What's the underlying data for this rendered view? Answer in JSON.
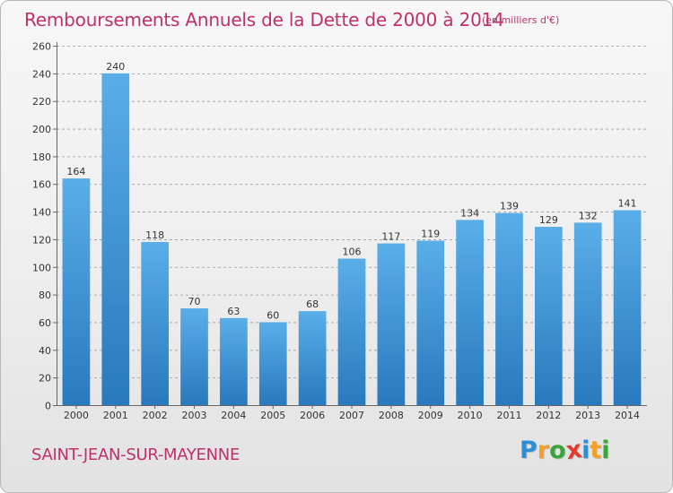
{
  "header": {
    "title": "Remboursements Annuels de la Dette de 2000 à 2014",
    "subtitle": "(en milliers d'€)"
  },
  "footer": {
    "commune": "SAINT-JEAN-SUR-MAYENNE",
    "logo_letters": [
      {
        "char": "P",
        "color": "#2f8fd6"
      },
      {
        "char": "r",
        "color": "#f2a126"
      },
      {
        "char": "o",
        "color": "#3aa53a"
      },
      {
        "char": "x",
        "color": "#e03b2e"
      },
      {
        "char": "i",
        "color": "#2f8fd6"
      },
      {
        "char": "t",
        "color": "#f2a126"
      },
      {
        "char": "i",
        "color": "#3aa53a"
      }
    ]
  },
  "colors": {
    "title": "#c0306a",
    "bar_light": "#5aaee8",
    "bar_dark": "#2879be",
    "grid": "#9a9a9a"
  },
  "chart_data": {
    "type": "bar",
    "title": "Remboursements Annuels de la Dette de 2000 à 2014",
    "subtitle": "(en milliers d'€)",
    "xlabel": "",
    "ylabel": "",
    "categories": [
      "2000",
      "2001",
      "2002",
      "2003",
      "2004",
      "2005",
      "2006",
      "2007",
      "2008",
      "2009",
      "2010",
      "2011",
      "2012",
      "2013",
      "2014"
    ],
    "values": [
      164,
      240,
      118,
      70,
      63,
      60,
      68,
      106,
      117,
      119,
      134,
      139,
      129,
      132,
      141
    ],
    "ylim": [
      0,
      260
    ],
    "yticks": [
      0,
      20,
      40,
      60,
      80,
      100,
      120,
      140,
      160,
      180,
      200,
      220,
      240,
      260
    ],
    "grid": "horizontal dashed",
    "legend": "none"
  }
}
